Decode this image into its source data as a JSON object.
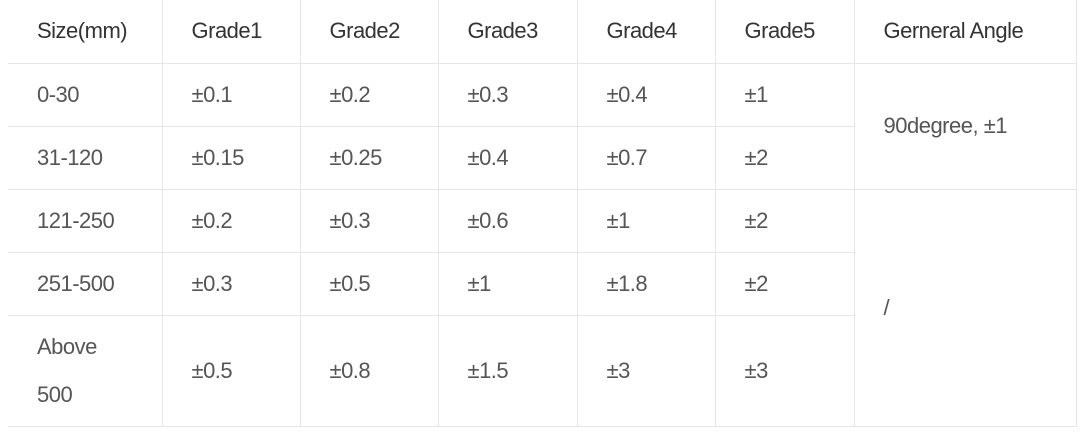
{
  "table": {
    "header": [
      "Size(mm)",
      "Grade1",
      "Grade2",
      "Grade3",
      "Grade4",
      "Grade5",
      "Gerneral Angle"
    ],
    "rows": [
      [
        "0-30",
        "±0.1",
        "±0.2",
        "±0.3",
        "±0.4",
        "±1"
      ],
      [
        "31-120",
        "±0.15",
        "±0.25",
        "±0.4",
        "±0.7",
        "±2"
      ],
      [
        "121-250",
        "±0.2",
        "±0.3",
        "±0.6",
        "±1",
        "±2"
      ],
      [
        "251-500",
        "±0.3",
        "±0.5",
        "±1",
        "±1.8",
        "±2"
      ],
      [
        "Above 500",
        "±0.5",
        "±0.8",
        "±1.5",
        "±3",
        "±3"
      ]
    ],
    "angles": [
      "90degree, ±1",
      "/"
    ]
  }
}
